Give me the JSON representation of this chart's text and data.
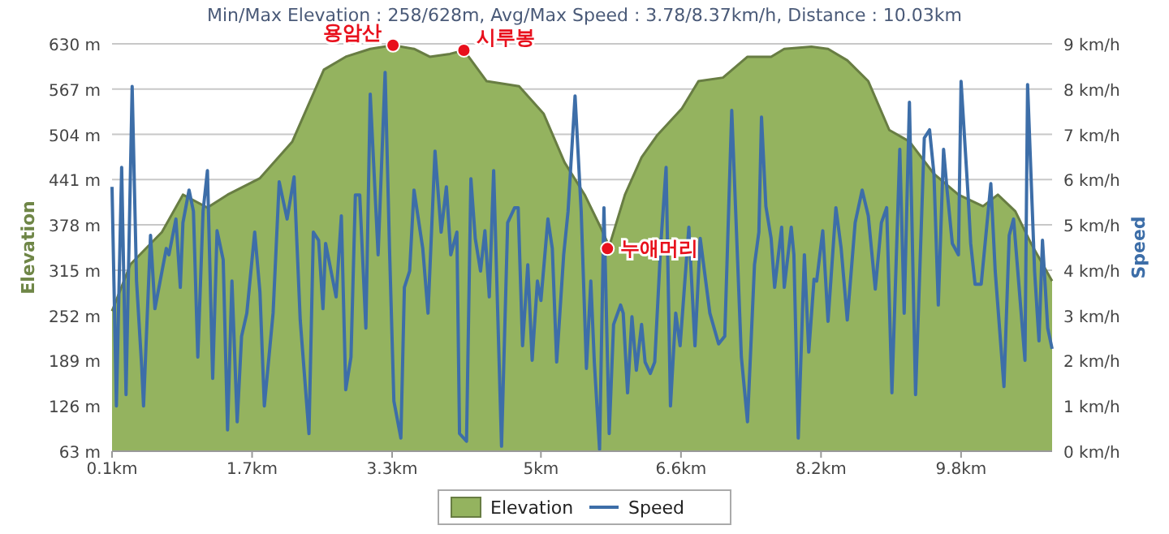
{
  "chart_data": {
    "type": "area",
    "title": "Min/Max Elevation : 258/628m, Avg/Max Speed : 3.78/8.37km/h, Distance : 10.03km",
    "ylabel": "Elevation",
    "y2label": "Speed",
    "xlim": [
      0.1,
      10.84
    ],
    "xticks": [
      {
        "value": 0.1,
        "label": "0.1km"
      },
      {
        "value": 1.7,
        "label": "1.7km"
      },
      {
        "value": 3.3,
        "label": "3.3km"
      },
      {
        "value": 5,
        "label": "5km"
      },
      {
        "value": 6.6,
        "label": "6.6km"
      },
      {
        "value": 8.2,
        "label": "8.2km"
      },
      {
        "value": 9.8,
        "label": "9.8km"
      }
    ],
    "ylim": [
      63,
      630
    ],
    "yticks": [
      {
        "value": 63,
        "label": "63 m"
      },
      {
        "value": 126,
        "label": "126 m"
      },
      {
        "value": 189,
        "label": "189 m"
      },
      {
        "value": 252,
        "label": "252 m"
      },
      {
        "value": 315,
        "label": "315 m"
      },
      {
        "value": 378,
        "label": "378 m"
      },
      {
        "value": 441,
        "label": "441 m"
      },
      {
        "value": 504,
        "label": "504 m"
      },
      {
        "value": 567,
        "label": "567 m"
      },
      {
        "value": 630,
        "label": "630 m"
      }
    ],
    "y2lim": [
      0,
      9
    ],
    "y2ticks": [
      {
        "value": 0,
        "label": "0 km/h"
      },
      {
        "value": 1,
        "label": "1 km/h"
      },
      {
        "value": 2,
        "label": "2 km/h"
      },
      {
        "value": 3,
        "label": "3 km/h"
      },
      {
        "value": 4,
        "label": "4 km/h"
      },
      {
        "value": 5,
        "label": "5 km/h"
      },
      {
        "value": 6,
        "label": "6 km/h"
      },
      {
        "value": 7,
        "label": "7 km/h"
      },
      {
        "value": 8,
        "label": "8 km/h"
      },
      {
        "value": 9,
        "label": "9 km/h"
      }
    ],
    "grid": "y",
    "legend": "bottom",
    "series": [
      {
        "name": "Elevation",
        "color": "#94b35f",
        "x": [
          0.1,
          0.31,
          0.67,
          0.91,
          1.19,
          1.42,
          1.79,
          2.16,
          2.52,
          2.77,
          3.05,
          3.31,
          3.55,
          3.73,
          3.96,
          4.12,
          4.38,
          4.75,
          5.03,
          5.27,
          5.5,
          5.68,
          5.78,
          5.96,
          6.15,
          6.33,
          6.61,
          6.8,
          7.08,
          7.36,
          7.63,
          7.78,
          8.09,
          8.28,
          8.5,
          8.74,
          8.98,
          9.21,
          9.49,
          9.77,
          10.05,
          10.22,
          10.42,
          10.6,
          10.84
        ],
        "values": [
          258,
          323,
          368,
          420,
          402,
          420,
          443,
          494,
          594,
          612,
          623,
          628,
          623,
          612,
          616,
          621,
          578,
          571,
          533,
          465,
          420,
          375,
          348,
          420,
          472,
          503,
          540,
          578,
          583,
          612,
          612,
          623,
          626,
          623,
          607,
          578,
          510,
          494,
          449,
          420,
          404,
          420,
          397,
          352,
          300
        ]
      },
      {
        "name": "Speed",
        "type": "line",
        "axis": "y2",
        "color": "#3d6ea8",
        "x": [
          0.1,
          0.15,
          0.21,
          0.26,
          0.33,
          0.38,
          0.44,
          0.46,
          0.54,
          0.59,
          0.72,
          0.75,
          0.83,
          0.88,
          0.91,
          0.98,
          1.03,
          1.08,
          1.14,
          1.19,
          1.25,
          1.3,
          1.37,
          1.42,
          1.47,
          1.53,
          1.58,
          1.64,
          1.73,
          1.79,
          1.84,
          1.94,
          2.01,
          2.1,
          2.18,
          2.25,
          2.35,
          2.4,
          2.46,
          2.51,
          2.54,
          2.66,
          2.72,
          2.77,
          2.83,
          2.88,
          2.93,
          3.0,
          3.05,
          3.14,
          3.22,
          3.27,
          3.32,
          3.4,
          3.44,
          3.5,
          3.55,
          3.65,
          3.71,
          3.79,
          3.86,
          3.92,
          3.97,
          4.04,
          4.07,
          4.15,
          4.2,
          4.25,
          4.31,
          4.36,
          4.41,
          4.46,
          4.55,
          4.62,
          4.7,
          4.74,
          4.79,
          4.85,
          4.9,
          4.96,
          5.0,
          5.08,
          5.13,
          5.18,
          5.26,
          5.31,
          5.39,
          5.46,
          5.52,
          5.57,
          5.61,
          5.67,
          5.72,
          5.78,
          5.83,
          5.91,
          5.94,
          5.99,
          6.04,
          6.09,
          6.15,
          6.19,
          6.25,
          6.3,
          6.37,
          6.43,
          6.48,
          6.54,
          6.59,
          6.69,
          6.76,
          6.82,
          6.93,
          7.03,
          7.1,
          7.18,
          7.29,
          7.36,
          7.44,
          7.49,
          7.52,
          7.57,
          7.63,
          7.67,
          7.75,
          7.78,
          7.86,
          7.89,
          7.94,
          8.01,
          8.06,
          8.12,
          8.15,
          8.22,
          8.28,
          8.37,
          8.43,
          8.5,
          8.59,
          8.67,
          8.74,
          8.82,
          8.89,
          8.95,
          9.01,
          9.1,
          9.15,
          9.21,
          9.28,
          9.38,
          9.44,
          9.49,
          9.54,
          9.6,
          9.64,
          9.7,
          9.77,
          9.8,
          9.88,
          9.91,
          9.96,
          10.03,
          10.14,
          10.19,
          10.29,
          10.35,
          10.4,
          10.53,
          10.56,
          10.64,
          10.69,
          10.73,
          10.79,
          10.84
        ],
        "values": [
          5.84,
          1.0,
          6.27,
          1.25,
          8.06,
          3.76,
          1.83,
          1.0,
          4.77,
          3.15,
          4.48,
          4.34,
          5.13,
          3.62,
          5.05,
          5.77,
          5.3,
          2.08,
          5.3,
          6.2,
          1.61,
          4.87,
          4.23,
          0.47,
          3.76,
          0.65,
          2.54,
          3.05,
          4.84,
          3.51,
          1.0,
          3.05,
          5.95,
          5.13,
          6.06,
          2.9,
          0.39,
          4.84,
          4.66,
          3.15,
          4.59,
          3.41,
          5.2,
          1.36,
          2.08,
          5.66,
          5.66,
          2.72,
          7.89,
          4.34,
          8.37,
          4.48,
          1.11,
          0.29,
          3.62,
          3.98,
          5.77,
          4.48,
          3.05,
          6.63,
          4.84,
          5.84,
          4.34,
          4.84,
          0.39,
          0.22,
          6.02,
          4.7,
          3.98,
          4.87,
          3.41,
          6.2,
          0.11,
          5.05,
          5.38,
          5.38,
          2.33,
          4.12,
          2.01,
          3.76,
          3.33,
          5.13,
          4.48,
          1.97,
          4.34,
          5.3,
          7.85,
          5.3,
          1.83,
          3.76,
          1.97,
          0.04,
          5.38,
          0.39,
          2.8,
          3.23,
          3.05,
          1.29,
          2.97,
          1.79,
          2.8,
          1.97,
          1.72,
          1.97,
          4.59,
          6.27,
          1.0,
          3.05,
          2.33,
          4.95,
          2.33,
          4.7,
          3.05,
          2.37,
          2.54,
          7.53,
          2.08,
          0.65,
          4.12,
          4.84,
          7.38,
          5.41,
          4.7,
          3.62,
          4.95,
          3.62,
          4.95,
          4.34,
          0.29,
          4.34,
          2.19,
          3.8,
          3.76,
          4.87,
          2.87,
          5.38,
          4.48,
          2.9,
          5.05,
          5.77,
          5.2,
          3.58,
          5.05,
          5.38,
          1.29,
          6.67,
          3.05,
          7.71,
          1.25,
          6.92,
          7.1,
          6.13,
          3.23,
          6.67,
          5.77,
          4.59,
          4.34,
          8.17,
          5.66,
          4.59,
          3.69,
          3.69,
          5.91,
          3.98,
          1.43,
          4.77,
          5.13,
          2.01,
          8.1,
          3.98,
          2.44,
          4.66,
          2.72,
          2.26
        ]
      }
    ],
    "annotations": [
      {
        "text": "용암산",
        "x": 3.31,
        "y": 628
      },
      {
        "text": "시루봉",
        "x": 4.12,
        "y": 621
      },
      {
        "text": "누애머리",
        "x": 5.76,
        "y": 345
      }
    ]
  }
}
